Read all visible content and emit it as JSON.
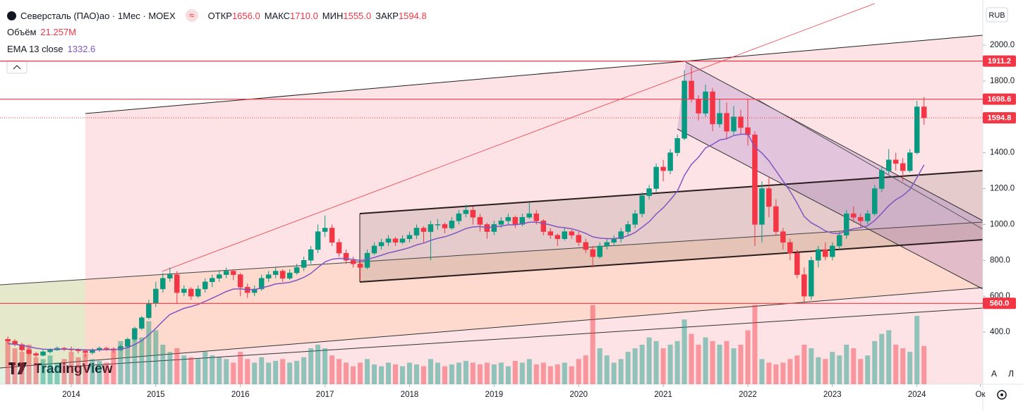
{
  "chart_data": {
    "type": "candlestick",
    "title": "Северсталь (ПАО)ао · 1Мес · MOEX",
    "up_color": "#089981",
    "down_color": "#f23645",
    "header_values": [
      {
        "name": "ОТКР",
        "value": 1656,
        "label": "1656.0"
      },
      {
        "name": "МАКС",
        "value": 1710,
        "label": "1710.0"
      },
      {
        "name": "МИН",
        "value": 1555,
        "label": "1555.0"
      },
      {
        "name": "ЗАКР",
        "value": 1594.8,
        "label": "1594.8"
      }
    ],
    "candles": [
      [
        360,
        375,
        335,
        350
      ],
      [
        350,
        360,
        320,
        330
      ],
      [
        330,
        340,
        290,
        300
      ],
      [
        300,
        310,
        270,
        280
      ],
      [
        280,
        290,
        260,
        270
      ],
      [
        270,
        300,
        265,
        290
      ],
      [
        290,
        310,
        280,
        300
      ],
      [
        300,
        320,
        295,
        310
      ],
      [
        310,
        318,
        295,
        305
      ],
      [
        305,
        320,
        290,
        300
      ],
      [
        300,
        310,
        280,
        295
      ],
      [
        295,
        305,
        260,
        285
      ],
      [
        285,
        310,
        275,
        300
      ],
      [
        300,
        320,
        290,
        310
      ],
      [
        310,
        318,
        295,
        305
      ],
      [
        305,
        315,
        285,
        300
      ],
      [
        300,
        330,
        295,
        320
      ],
      [
        320,
        370,
        315,
        360
      ],
      [
        360,
        430,
        350,
        420
      ],
      [
        420,
        490,
        410,
        480
      ],
      [
        480,
        580,
        470,
        560
      ],
      [
        560,
        680,
        540,
        640
      ],
      [
        640,
        730,
        620,
        700
      ],
      [
        700,
        760,
        680,
        720
      ],
      [
        720,
        740,
        560,
        620
      ],
      [
        620,
        660,
        600,
        640
      ],
      [
        640,
        650,
        580,
        600
      ],
      [
        600,
        660,
        590,
        640
      ],
      [
        640,
        700,
        620,
        680
      ],
      [
        680,
        720,
        650,
        700
      ],
      [
        700,
        740,
        680,
        720
      ],
      [
        720,
        760,
        700,
        740
      ],
      [
        740,
        750,
        690,
        720
      ],
      [
        720,
        730,
        600,
        650
      ],
      [
        650,
        670,
        590,
        620
      ],
      [
        620,
        660,
        600,
        640
      ],
      [
        640,
        720,
        630,
        700
      ],
      [
        700,
        740,
        680,
        720
      ],
      [
        720,
        760,
        700,
        740
      ],
      [
        740,
        750,
        680,
        700
      ],
      [
        700,
        750,
        690,
        730
      ],
      [
        730,
        780,
        720,
        760
      ],
      [
        760,
        820,
        740,
        800
      ],
      [
        800,
        880,
        780,
        860
      ],
      [
        860,
        1000,
        840,
        960
      ],
      [
        960,
        1050,
        930,
        980
      ],
      [
        980,
        1000,
        880,
        900
      ],
      [
        900,
        920,
        820,
        840
      ],
      [
        840,
        860,
        780,
        800
      ],
      [
        800,
        820,
        760,
        780
      ],
      [
        780,
        800,
        690,
        760
      ],
      [
        760,
        860,
        750,
        840
      ],
      [
        840,
        900,
        830,
        880
      ],
      [
        880,
        920,
        860,
        900
      ],
      [
        900,
        940,
        880,
        920
      ],
      [
        920,
        930,
        880,
        900
      ],
      [
        900,
        940,
        890,
        920
      ],
      [
        920,
        960,
        900,
        940
      ],
      [
        940,
        1000,
        920,
        980
      ],
      [
        980,
        990,
        900,
        960
      ],
      [
        960,
        1020,
        800,
        1000
      ],
      [
        1000,
        1030,
        970,
        1000
      ],
      [
        1000,
        1010,
        950,
        980
      ],
      [
        980,
        1040,
        970,
        1020
      ],
      [
        1020,
        1080,
        1000,
        1060
      ],
      [
        1060,
        1110,
        1040,
        1080
      ],
      [
        1080,
        1100,
        1000,
        1040
      ],
      [
        1040,
        1060,
        960,
        1000
      ],
      [
        1000,
        1010,
        920,
        960
      ],
      [
        960,
        1020,
        940,
        1000
      ],
      [
        1000,
        1040,
        980,
        1020
      ],
      [
        1020,
        1060,
        1000,
        1040
      ],
      [
        1040,
        1050,
        980,
        1000
      ],
      [
        1000,
        1060,
        990,
        1040
      ],
      [
        1040,
        1120,
        1030,
        1060
      ],
      [
        1060,
        1080,
        1000,
        1020
      ],
      [
        1020,
        1030,
        940,
        960
      ],
      [
        960,
        980,
        920,
        940
      ],
      [
        940,
        950,
        880,
        920
      ],
      [
        920,
        980,
        910,
        960
      ],
      [
        960,
        970,
        920,
        940
      ],
      [
        940,
        960,
        880,
        900
      ],
      [
        900,
        920,
        840,
        860
      ],
      [
        860,
        880,
        760,
        820
      ],
      [
        820,
        900,
        810,
        880
      ],
      [
        880,
        920,
        860,
        900
      ],
      [
        900,
        940,
        880,
        920
      ],
      [
        920,
        980,
        900,
        960
      ],
      [
        960,
        1020,
        940,
        1000
      ],
      [
        1000,
        1080,
        980,
        1060
      ],
      [
        1060,
        1180,
        1040,
        1160
      ],
      [
        1160,
        1220,
        1140,
        1200
      ],
      [
        1200,
        1340,
        1180,
        1320
      ],
      [
        1320,
        1360,
        1240,
        1300
      ],
      [
        1300,
        1420,
        1280,
        1400
      ],
      [
        1400,
        1500,
        1380,
        1480
      ],
      [
        1480,
        1860,
        1470,
        1800
      ],
      [
        1800,
        1880,
        1680,
        1700
      ],
      [
        1700,
        1720,
        1580,
        1620
      ],
      [
        1620,
        1780,
        1600,
        1740
      ],
      [
        1740,
        1760,
        1520,
        1560
      ],
      [
        1560,
        1700,
        1540,
        1620
      ],
      [
        1620,
        1680,
        1480,
        1520
      ],
      [
        1520,
        1660,
        1500,
        1600
      ],
      [
        1600,
        1640,
        1500,
        1540
      ],
      [
        1540,
        1700,
        1440,
        1500
      ],
      [
        1500,
        1520,
        880,
        1000
      ],
      [
        1000,
        1240,
        900,
        1200
      ],
      [
        1200,
        1260,
        1040,
        1100
      ],
      [
        1100,
        1140,
        940,
        960
      ],
      [
        960,
        980,
        860,
        900
      ],
      [
        900,
        920,
        800,
        840
      ],
      [
        840,
        860,
        700,
        720
      ],
      [
        720,
        760,
        560,
        600
      ],
      [
        600,
        820,
        580,
        800
      ],
      [
        800,
        880,
        760,
        860
      ],
      [
        860,
        900,
        800,
        820
      ],
      [
        820,
        900,
        800,
        880
      ],
      [
        880,
        960,
        860,
        940
      ],
      [
        940,
        1080,
        920,
        1060
      ],
      [
        1060,
        1100,
        1010,
        1040
      ],
      [
        1040,
        1060,
        980,
        1020
      ],
      [
        1020,
        1080,
        1000,
        1060
      ],
      [
        1060,
        1220,
        1050,
        1200
      ],
      [
        1200,
        1320,
        1180,
        1300
      ],
      [
        1300,
        1420,
        1280,
        1360
      ],
      [
        1360,
        1400,
        1300,
        1340
      ],
      [
        1340,
        1370,
        1240,
        1300
      ],
      [
        1300,
        1420,
        1290,
        1400
      ],
      [
        1400,
        1690,
        1390,
        1656
      ],
      [
        1656,
        1710,
        1555,
        1594.8
      ]
    ],
    "volume": {
      "name": "Объём",
      "value_label": "21.257M",
      "values": [
        25,
        20,
        18,
        22,
        15,
        14,
        16,
        12,
        14,
        18,
        15,
        17,
        14,
        13,
        12,
        20,
        24,
        22,
        28,
        26,
        35,
        30,
        22,
        18,
        20,
        16,
        15,
        14,
        18,
        16,
        15,
        14,
        12,
        18,
        14,
        12,
        15,
        12,
        13,
        14,
        12,
        13,
        15,
        20,
        22,
        20,
        16,
        14,
        12,
        10,
        12,
        14,
        11,
        10,
        12,
        11,
        10,
        12,
        11,
        10,
        14,
        12,
        10,
        11,
        12,
        13,
        12,
        11,
        12,
        11,
        12,
        10,
        13,
        12,
        14,
        11,
        12,
        10,
        11,
        12,
        10,
        14,
        16,
        44,
        20,
        16,
        12,
        14,
        18,
        20,
        22,
        26,
        24,
        20,
        22,
        24,
        36,
        28,
        22,
        26,
        24,
        22,
        24,
        20,
        22,
        30,
        44,
        14,
        12,
        11,
        12,
        14,
        16,
        22,
        20,
        15,
        14,
        18,
        16,
        22,
        20,
        14,
        16,
        24,
        28,
        30,
        22,
        20,
        18,
        38,
        21.257
      ]
    },
    "ema": {
      "name": "EMA 13 close",
      "color": "#7e57c2",
      "values": [
        335,
        332,
        326,
        318,
        310,
        305,
        303,
        304,
        304,
        304,
        303,
        300,
        300,
        301,
        302,
        302,
        305,
        313,
        330,
        352,
        384,
        421,
        461,
        498,
        515,
        532,
        542,
        554,
        571,
        589,
        607,
        626,
        640,
        641,
        637,
        637,
        646,
        656,
        668,
        672,
        677,
        689,
        705,
        727,
        760,
        791,
        806,
        811,
        809,
        805,
        799,
        805,
        816,
        828,
        841,
        850,
        860,
        871,
        886,
        896,
        911,
        923,
        931,
        944,
        960,
        977,
        986,
        988,
        983,
        986,
        991,
        998,
        998,
        1004,
        1012,
        1013,
        1006,
        997,
        986,
        982,
        976,
        965,
        950,
        931,
        924,
        921,
        921,
        926,
        937,
        955,
        984,
        1015,
        1058,
        1093,
        1137,
        1186,
        1274,
        1335,
        1375,
        1427,
        1446,
        1471,
        1478,
        1496,
        1503,
        1503,
        1431,
        1398,
        1355,
        1299,
        1242,
        1185,
        1118,
        1044,
        1009,
        988,
        964,
        951,
        949,
        965,
        976,
        982,
        993,
        1022,
        1062,
        1105,
        1138,
        1161,
        1195,
        1261,
        1332.6
      ]
    },
    "levels": [
      1911.2,
      1698.6,
      {
        "value": 560,
        "label": "560.0"
      }
    ],
    "level_color": "#f23645",
    "xlim": [
      -1.11,
      138.34
    ],
    "xticks": [
      {
        "value": 9,
        "label": "2014"
      },
      {
        "value": 21,
        "label": "2015"
      },
      {
        "value": 33,
        "label": "2016"
      },
      {
        "value": 45,
        "label": "2017"
      },
      {
        "value": 57,
        "label": "2018"
      },
      {
        "value": 69,
        "label": "2019"
      },
      {
        "value": 81,
        "label": "2020"
      },
      {
        "value": 93,
        "label": "2021"
      },
      {
        "value": 105,
        "label": "2022"
      },
      {
        "value": 117,
        "label": "2023"
      },
      {
        "value": 129,
        "label": "2024"
      },
      {
        "value": 138,
        "label": "Ок"
      }
    ],
    "ylim": [
      109.1,
      2251.6
    ],
    "yticks": [
      {
        "value": 400,
        "label": "400.0"
      },
      {
        "value": 600,
        "label": "600.0"
      },
      {
        "value": 800,
        "label": "800.0"
      },
      {
        "value": 1000,
        "label": "1000.0"
      },
      {
        "value": 1200,
        "label": "1200.0"
      },
      {
        "value": 1400,
        "label": "1400.0"
      },
      {
        "value": 1600,
        "label": "1600.0"
      },
      {
        "value": 1800,
        "label": "1800.0"
      },
      {
        "value": 2000,
        "label": "2000.0"
      }
    ],
    "currency": "RUB",
    "auto_button": "A",
    "log_button": "Л",
    "logo": "TradingView"
  }
}
